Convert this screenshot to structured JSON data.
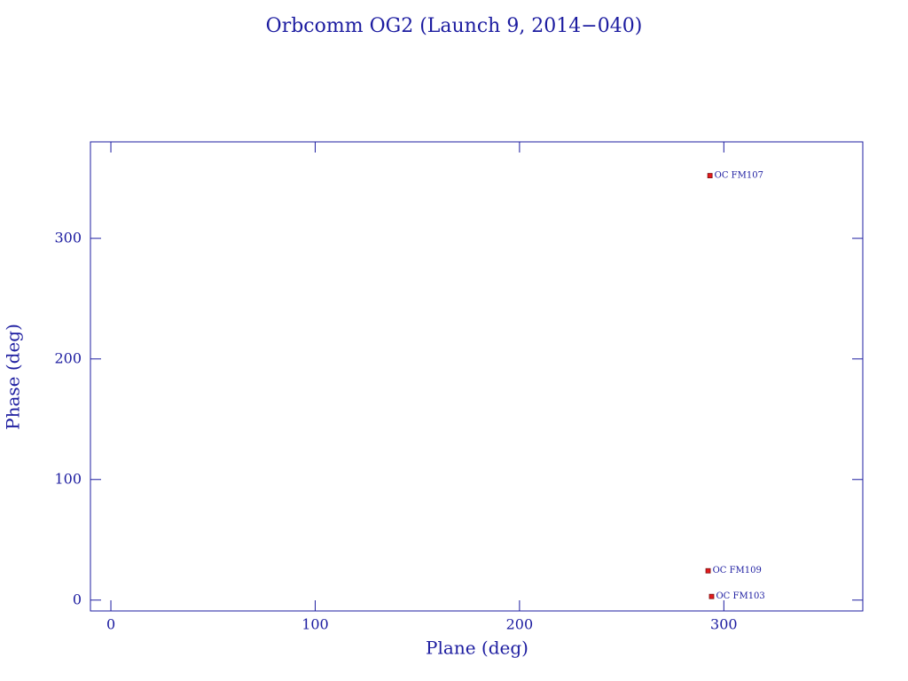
{
  "chart_data": {
    "type": "scatter",
    "title": "Orbcomm OG2 (Launch 9, 2014−040)",
    "x_label": "Plane (deg)",
    "y_label": "Phase (deg)",
    "xlim": [
      -10,
      368
    ],
    "ylim": [
      -9,
      380
    ],
    "xticks": [
      0,
      100,
      200,
      300
    ],
    "yticks": [
      0,
      100,
      200,
      300
    ],
    "series": [
      {
        "color": "#e41a1c",
        "x": [
          293.2,
          292.3,
          294
        ],
        "values": [
          352,
          24.3,
          3
        ],
        "point_labels": [
          "OC FM107",
          "OC FM109",
          "OC FM103"
        ]
      }
    ]
  }
}
